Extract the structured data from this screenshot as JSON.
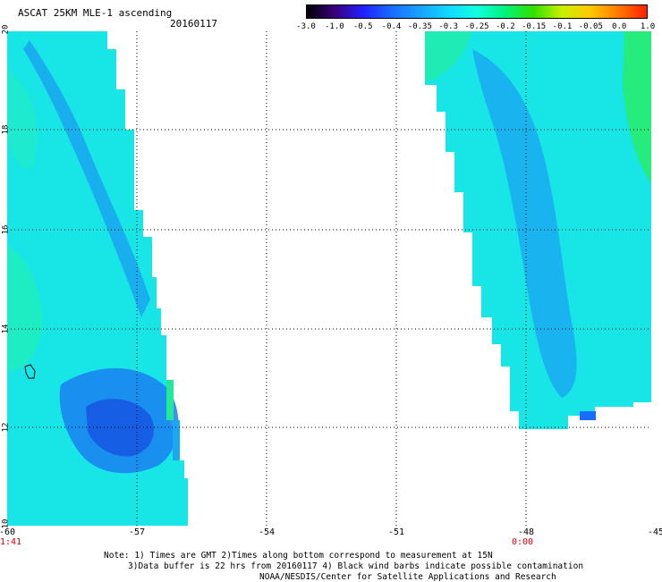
{
  "header": {
    "title": "ASCAT 25KM MLE-1 ascending",
    "date": "20160117"
  },
  "colorbar": {
    "ticks": [
      "-3.0",
      "-1.0",
      "-0.5",
      "-0.4",
      "-0.35",
      "-0.3",
      "-0.25",
      "-0.2",
      "-0.15",
      "-0.1",
      "-0.05",
      "0.0",
      "1.0"
    ],
    "colors": [
      "#000000",
      "#3a0080",
      "#2020ff",
      "#1a6cff",
      "#17a4ff",
      "#12d8ff",
      "#12ffe0",
      "#00f27a",
      "#30e000",
      "#c8f000",
      "#ffc800",
      "#ff7a00",
      "#ff1e00"
    ]
  },
  "map": {
    "x_ticks": [
      "-60",
      "-57",
      "-54",
      "-51",
      "-48",
      "-45"
    ],
    "y_ticks": [
      "20",
      "18",
      "16",
      "14",
      "12",
      "10"
    ],
    "time_labels": [
      {
        "lon": "-60",
        "text": "1:41"
      },
      {
        "lon": "-48",
        "text": "0:00"
      }
    ]
  },
  "footer": {
    "note_line1": "Note: 1) Times are GMT 2)Times along bottom correspond to measurement at 15N",
    "note_line2": "3)Data buffer is 22 hrs from 20160117 4) Black wind barbs indicate possible contamination",
    "credit": "NOAA/NESDIS/Center for Satellite Applications and Research"
  }
}
